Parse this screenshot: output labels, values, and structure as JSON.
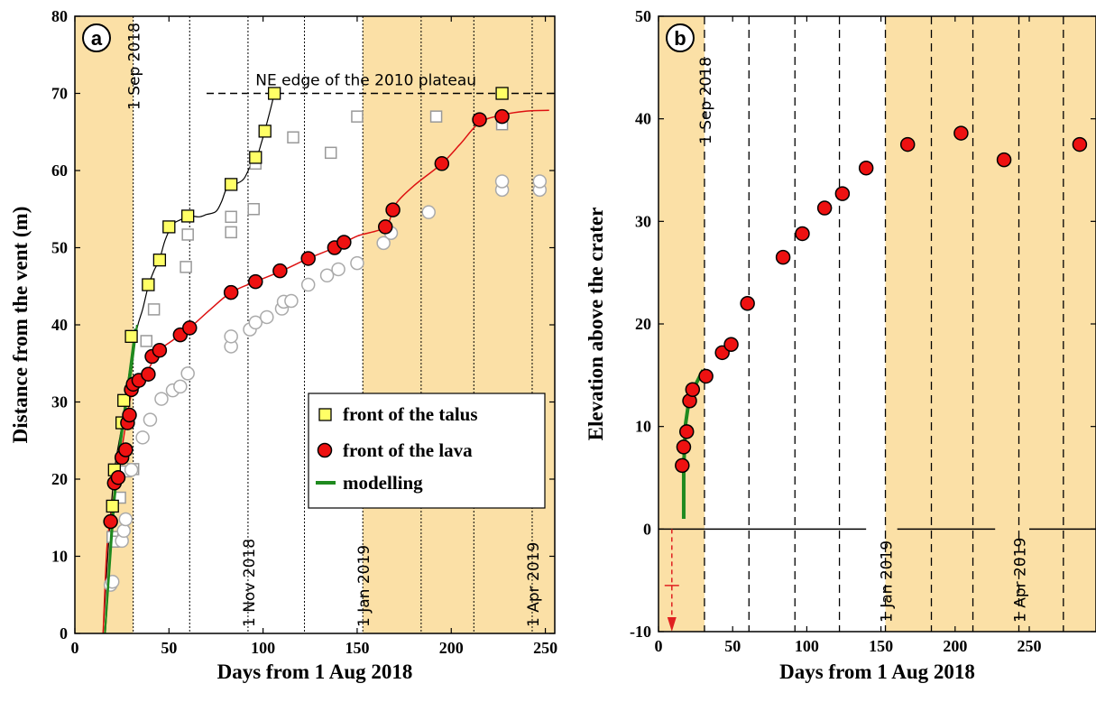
{
  "chart_data": [
    {
      "panel": "a",
      "type": "scatter",
      "xlabel": "Days from 1 Aug 2018",
      "ylabel": "Distance from the vent (m)",
      "xlim": [
        0,
        255
      ],
      "ylim": [
        0,
        80
      ],
      "xticks": [
        0,
        50,
        100,
        150,
        200,
        250
      ],
      "yticks": [
        0,
        10,
        20,
        30,
        40,
        50,
        60,
        70,
        80
      ],
      "shaded_x_ranges": [
        [
          0,
          31
        ],
        [
          153,
          255
        ]
      ],
      "vlines": [
        {
          "x": 31,
          "label": "1 Sep 2018"
        },
        {
          "x": 61,
          "label": ""
        },
        {
          "x": 92,
          "label": "1 Nov 2018"
        },
        {
          "x": 122,
          "label": ""
        },
        {
          "x": 153,
          "label": "1 Jan 2019"
        },
        {
          "x": 184,
          "label": ""
        },
        {
          "x": 212,
          "label": ""
        },
        {
          "x": 243,
          "label": "1 Apr 2019"
        }
      ],
      "hline": {
        "y": 70,
        "x_from": 70,
        "x_to": 255,
        "label": "NE edge of the 2010 plateau"
      },
      "legend": {
        "position": "lower-right",
        "entries": [
          "front of the talus",
          "front of the lava",
          "modelling"
        ]
      },
      "series": [
        {
          "name": "front of the talus",
          "marker": "square",
          "color": "#ffff66",
          "points": [
            [
              20,
              16.5
            ],
            [
              21,
              21.2
            ],
            [
              25,
              27.3
            ],
            [
              26,
              30.2
            ],
            [
              30,
              38.5
            ],
            [
              39,
              45.2
            ],
            [
              45,
              48.4
            ],
            [
              50,
              52.7
            ],
            [
              60,
              54.1
            ],
            [
              83,
              58.2
            ],
            [
              96,
              61.7
            ],
            [
              101,
              65.1
            ],
            [
              106,
              70.0
            ],
            [
              227,
              70.0
            ]
          ]
        },
        {
          "name": "front of the lava",
          "marker": "circle",
          "color": "#ee1111",
          "points": [
            [
              19,
              14.5
            ],
            [
              21,
              19.5
            ],
            [
              23,
              20.2
            ],
            [
              25,
              22.8
            ],
            [
              27,
              23.8
            ],
            [
              28,
              27.3
            ],
            [
              29,
              28.3
            ],
            [
              30,
              31.6
            ],
            [
              31,
              32.3
            ],
            [
              34,
              32.8
            ],
            [
              39,
              33.6
            ],
            [
              41,
              35.9
            ],
            [
              45,
              36.7
            ],
            [
              56,
              38.7
            ],
            [
              61,
              39.6
            ],
            [
              83,
              44.2
            ],
            [
              96,
              45.6
            ],
            [
              109,
              47.0
            ],
            [
              124,
              48.6
            ],
            [
              138,
              50.0
            ],
            [
              143,
              50.7
            ],
            [
              165,
              52.7
            ],
            [
              169,
              54.9
            ],
            [
              195,
              60.9
            ],
            [
              215,
              66.6
            ],
            [
              227,
              67.0
            ]
          ]
        },
        {
          "name": "",
          "marker": "square",
          "color": "#aaaaaa",
          "points": [
            [
              20,
              12.5
            ],
            [
              22,
              11.9
            ],
            [
              24,
              17.6
            ],
            [
              27,
              21.0
            ],
            [
              31,
              21.3
            ],
            [
              38,
              37.9
            ],
            [
              42,
              42.0
            ],
            [
              59,
              47.5
            ],
            [
              60,
              51.7
            ],
            [
              83,
              52.0
            ],
            [
              83,
              54.0
            ],
            [
              95,
              55.0
            ],
            [
              96,
              60.9
            ],
            [
              116,
              64.3
            ],
            [
              136,
              62.3
            ],
            [
              150,
              67.0
            ],
            [
              192,
              67.0
            ],
            [
              227,
              66.0
            ]
          ]
        },
        {
          "name": "",
          "marker": "circle",
          "color": "#cccccc",
          "points": [
            [
              19,
              6.3
            ],
            [
              20,
              6.7
            ],
            [
              25,
              12.0
            ],
            [
              26,
              13.3
            ],
            [
              27,
              14.8
            ],
            [
              30,
              21.2
            ],
            [
              36,
              25.4
            ],
            [
              40,
              27.7
            ],
            [
              46,
              30.4
            ],
            [
              52,
              31.5
            ],
            [
              56,
              32.0
            ],
            [
              60,
              33.7
            ],
            [
              83,
              37.2
            ],
            [
              83,
              38.5
            ],
            [
              93,
              39.4
            ],
            [
              96,
              40.3
            ],
            [
              102,
              41.0
            ],
            [
              110,
              42.1
            ],
            [
              111,
              43.0
            ],
            [
              115,
              43.1
            ],
            [
              124,
              45.2
            ],
            [
              134,
              46.4
            ],
            [
              140,
              47.2
            ],
            [
              150,
              48.0
            ],
            [
              164,
              50.6
            ],
            [
              168,
              51.9
            ],
            [
              188,
              54.6
            ],
            [
              227,
              57.5
            ],
            [
              227,
              58.6
            ],
            [
              247,
              57.5
            ],
            [
              247,
              58.6
            ]
          ]
        }
      ],
      "fits": {
        "talus_curve": [
          [
            15,
            0
          ],
          [
            18,
            12
          ],
          [
            21,
            21
          ],
          [
            25,
            27
          ],
          [
            29,
            34
          ],
          [
            33,
            39.5
          ],
          [
            36,
            42
          ],
          [
            39,
            45
          ],
          [
            42,
            47
          ],
          [
            45,
            48.5
          ],
          [
            48,
            51
          ],
          [
            52,
            53
          ],
          [
            56,
            53.6
          ],
          [
            61,
            54.1
          ],
          [
            66,
            54
          ],
          [
            70,
            54.3
          ],
          [
            75,
            54.7
          ],
          [
            78,
            56
          ],
          [
            81,
            57.8
          ],
          [
            86,
            58.3
          ],
          [
            90,
            59
          ],
          [
            94,
            61
          ],
          [
            97,
            62
          ],
          [
            99,
            63.5
          ],
          [
            101,
            65.2
          ],
          [
            104,
            68
          ],
          [
            106,
            70
          ]
        ],
        "lava_curve": [
          [
            15,
            0
          ],
          [
            17,
            11
          ],
          [
            19,
            15
          ],
          [
            22,
            20
          ],
          [
            25,
            24
          ],
          [
            27,
            27
          ],
          [
            30,
            31
          ],
          [
            34,
            33
          ],
          [
            39,
            34.2
          ],
          [
            44,
            36.5
          ],
          [
            52,
            38
          ],
          [
            61,
            39.6
          ],
          [
            72,
            42
          ],
          [
            83,
            44.2
          ],
          [
            96,
            45.6
          ],
          [
            110,
            47
          ],
          [
            124,
            48.6
          ],
          [
            138,
            50
          ],
          [
            150,
            51.5
          ],
          [
            165,
            52.7
          ],
          [
            170,
            55.5
          ],
          [
            180,
            58
          ],
          [
            195,
            60.9
          ],
          [
            205,
            63.5
          ],
          [
            215,
            66.2
          ],
          [
            227,
            67.2
          ],
          [
            240,
            67.7
          ],
          [
            252,
            67.8
          ]
        ],
        "modelling_lines": [
          [
            [
              16,
              0
            ],
            [
              20,
              16
            ],
            [
              24,
              25
            ],
            [
              28,
              32
            ],
            [
              32,
              39.5
            ]
          ],
          [
            [
              16,
              0
            ],
            [
              21,
              17
            ],
            [
              25,
              26
            ],
            [
              30,
              34
            ],
            [
              33,
              40
            ]
          ],
          [
            [
              16,
              0
            ],
            [
              20,
              15
            ],
            [
              24,
              24
            ],
            [
              28,
              31
            ]
          ]
        ]
      }
    },
    {
      "panel": "b",
      "type": "scatter",
      "xlabel": "Days from 1 Aug 2018",
      "ylabel": "Elevation above the crater",
      "xlim": [
        0,
        295
      ],
      "ylim": [
        -10,
        50
      ],
      "xticks": [
        0,
        50,
        100,
        150,
        200,
        250
      ],
      "yticks": [
        -10,
        0,
        10,
        20,
        30,
        40,
        50
      ],
      "shaded_x_ranges": [
        [
          0,
          31
        ],
        [
          153,
          295
        ]
      ],
      "vlines": [
        {
          "x": 31,
          "label": "1 Sep 2018"
        },
        {
          "x": 61,
          "label": ""
        },
        {
          "x": 92,
          "label": ""
        },
        {
          "x": 122,
          "label": ""
        },
        {
          "x": 153,
          "label": "1 Jan 2019"
        },
        {
          "x": 184,
          "label": ""
        },
        {
          "x": 212,
          "label": ""
        },
        {
          "x": 243,
          "label": "1 Apr 2019"
        },
        {
          "x": 273,
          "label": ""
        }
      ],
      "series": [
        {
          "name": "front of the lava",
          "marker": "circle",
          "color": "#ee1111",
          "points": [
            [
              16,
              6.2
            ],
            [
              17,
              8
            ],
            [
              19,
              9.5
            ],
            [
              21,
              12.5
            ],
            [
              23,
              13.6
            ],
            [
              32,
              14.9
            ],
            [
              43,
              17.2
            ],
            [
              49,
              18
            ],
            [
              60,
              22
            ],
            [
              84,
              26.5
            ],
            [
              97,
              28.8
            ],
            [
              112,
              31.3
            ],
            [
              124,
              32.7
            ],
            [
              140,
              35.2
            ],
            [
              168,
              37.5
            ],
            [
              204,
              38.6
            ],
            [
              233,
              36
            ],
            [
              284,
              37.5
            ]
          ]
        }
      ],
      "fits": {
        "modelling_lines": [
          [
            [
              17,
              1
            ],
            [
              17,
              6
            ],
            [
              18,
              9.5
            ]
          ],
          [
            [
              18,
              10
            ],
            [
              20,
              12
            ],
            [
              24,
              13.8
            ],
            [
              30,
              15.5
            ]
          ]
        ],
        "zero_line_segments": [
          [
            [
              0,
              140
            ],
            [
              161,
              227
            ],
            [
              250,
              295
            ]
          ]
        ],
        "down_arrow": {
          "x": 9,
          "from_y": 0,
          "to_y": -10
        }
      }
    }
  ]
}
